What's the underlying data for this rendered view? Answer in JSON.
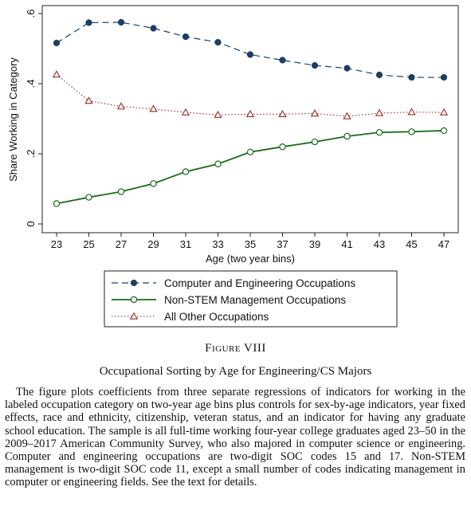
{
  "figure": {
    "label": "Figure VIII",
    "title": "Occupational Sorting by Age for Engineering/CS Majors",
    "caption": "The figure plots coefficients from three separate regressions of indicators for working in the labeled occupation category on two-year age bins plus controls for sex-by-age indicators, year fixed effects, race and ethnicity, citizenship, veteran status, and an indicator for having any graduate school education. The sample is all full-time working four-year college graduates aged 23–50 in the 2009–2017 American Community Survey, who also majored in computer science or engineering. Computer and engineering occupations are two-digit SOC codes 15 and 17. Non-STEM management is two-digit SOC code 11, except a small number of codes indicating management in computer or engineering fields. See the text for details."
  },
  "chart_data": {
    "type": "line",
    "xlabel": "Age (two year bins)",
    "ylabel": "Share Working in Category",
    "x": [
      23,
      25,
      27,
      29,
      31,
      33,
      35,
      37,
      39,
      41,
      43,
      45,
      47
    ],
    "x_tick_labels": [
      "23",
      "25",
      "27",
      "29",
      "31",
      "33",
      "35",
      "37",
      "39",
      "41",
      "43",
      "45",
      "47"
    ],
    "y_ticks": [
      0,
      0.2,
      0.4,
      0.6
    ],
    "y_tick_labels": [
      "0",
      ".2",
      ".4",
      ".6"
    ],
    "ylim": [
      0,
      0.62
    ],
    "grid": false,
    "legend_position": "bottom",
    "series": [
      {
        "name": "Computer and Engineering Occupations",
        "values": [
          0.516,
          0.574,
          0.575,
          0.558,
          0.534,
          0.518,
          0.483,
          0.467,
          0.452,
          0.444,
          0.425,
          0.418,
          0.418
        ],
        "color": "#1c3f63",
        "line_style": "dashed",
        "marker": "filled-circle"
      },
      {
        "name": "Non-STEM Management Occupations",
        "values": [
          0.058,
          0.076,
          0.092,
          0.115,
          0.149,
          0.171,
          0.205,
          0.22,
          0.234,
          0.25,
          0.261,
          0.263,
          0.266
        ],
        "color": "#1a6b1a",
        "line_style": "solid",
        "marker": "hollow-circle"
      },
      {
        "name": "All Other Occupations",
        "values": [
          0.426,
          0.351,
          0.335,
          0.328,
          0.318,
          0.311,
          0.313,
          0.313,
          0.315,
          0.307,
          0.316,
          0.319,
          0.318
        ],
        "color": "#9a2a2a",
        "line_style": "dotted",
        "marker": "hollow-triangle"
      }
    ]
  }
}
